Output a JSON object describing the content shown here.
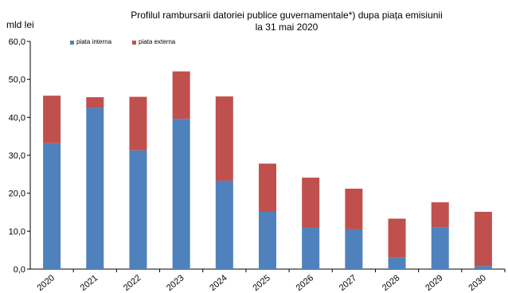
{
  "chart_data": {
    "type": "bar",
    "stacked": true,
    "title_line1": "Profilul  rambursarii datoriei publice guvernamentale*) dupa piața emisiunii",
    "title_line2": "la 31 mai 2020",
    "ylabel": "mld lei",
    "xlabel": "",
    "categories": [
      "2020",
      "2021",
      "2022",
      "2023",
      "2024",
      "2025",
      "2026",
      "2027",
      "2028",
      "2029",
      "2030"
    ],
    "series": [
      {
        "name": "piata interna",
        "color": "#4f81bd",
        "values": [
          33.2,
          42.5,
          31.3,
          39.6,
          23.3,
          15.1,
          10.9,
          10.5,
          3.0,
          11.1,
          0.8
        ]
      },
      {
        "name": "piata externa",
        "color": "#c0504d",
        "values": [
          12.5,
          2.8,
          14.1,
          12.5,
          22.2,
          12.7,
          13.2,
          10.7,
          10.3,
          6.5,
          14.3
        ]
      }
    ],
    "ylim": [
      0,
      60
    ],
    "yticks": [
      "0,0",
      "10,0",
      "20,0",
      "30,0",
      "40,0",
      "50,0",
      "60,0"
    ],
    "grid": false,
    "legend_position": "top-left"
  }
}
